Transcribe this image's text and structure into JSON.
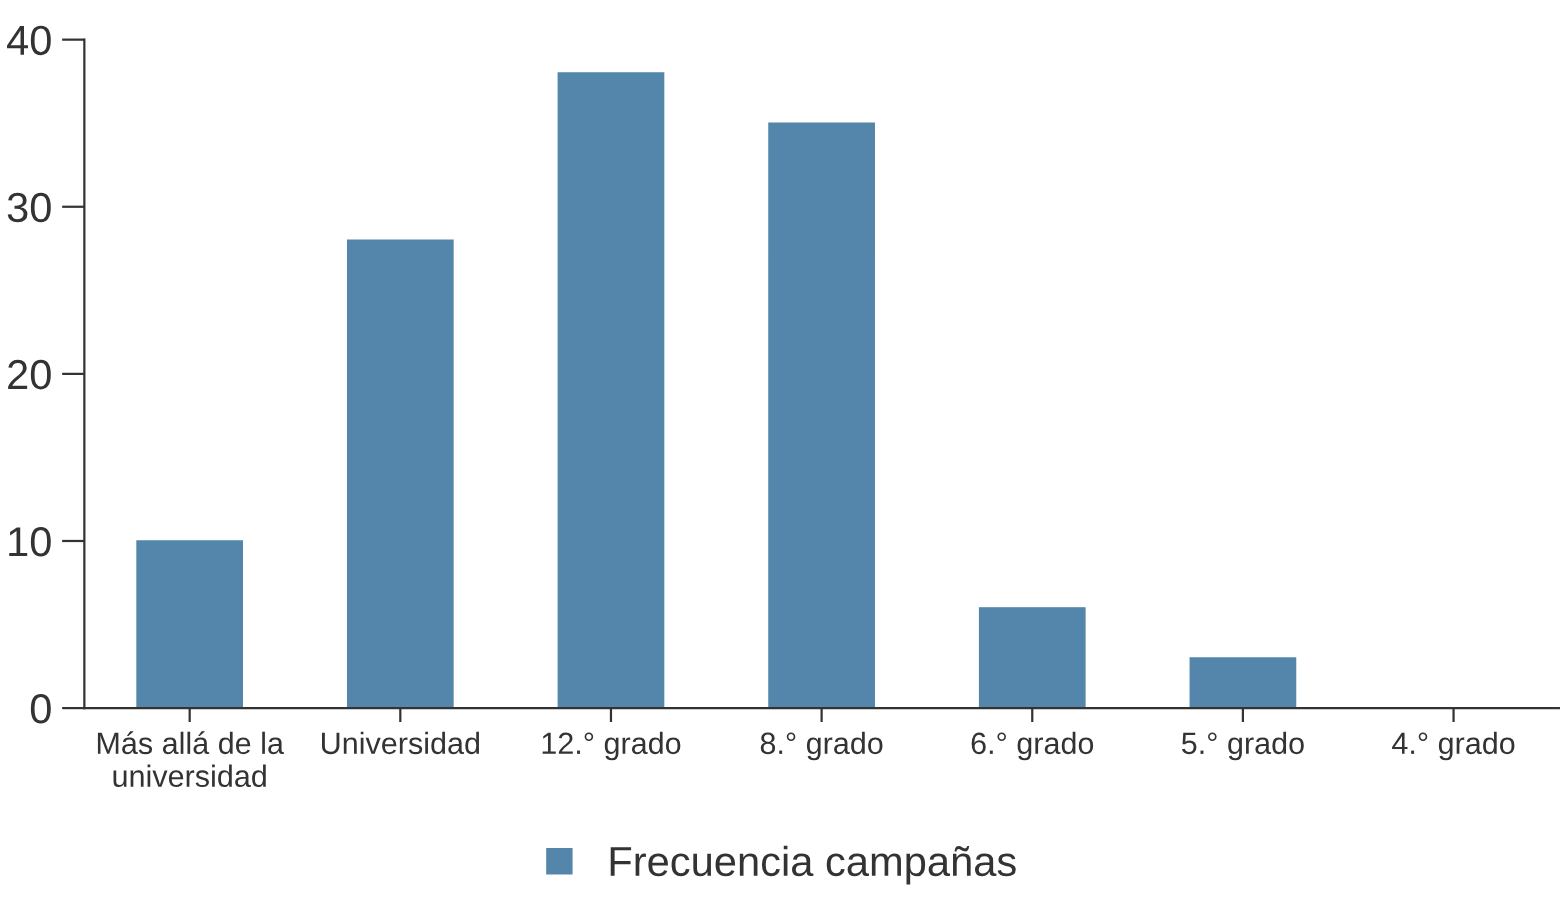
{
  "chart_data": {
    "type": "bar",
    "categories": [
      "Más allá de la\nuniversidad",
      "Universidad",
      "12.° grado",
      "8.° grado",
      "6.° grado",
      "5.° grado",
      "4.° grado"
    ],
    "series": [
      {
        "name": "Frecuencia campañas",
        "color": "#5386aa",
        "values": [
          10,
          28,
          38,
          35,
          6,
          3,
          0
        ]
      }
    ],
    "ylim": [
      0,
      40
    ],
    "yticks": [
      0,
      10,
      20,
      30,
      40
    ],
    "grid": false,
    "legend": "bottom"
  }
}
